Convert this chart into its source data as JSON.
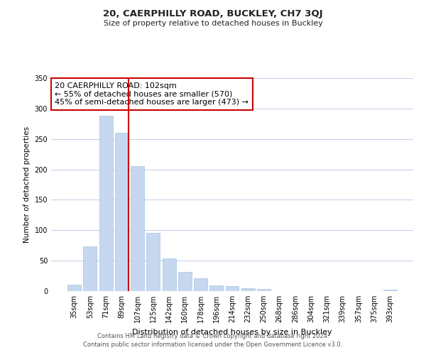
{
  "title": "20, CAERPHILLY ROAD, BUCKLEY, CH7 3QJ",
  "subtitle": "Size of property relative to detached houses in Buckley",
  "xlabel": "Distribution of detached houses by size in Buckley",
  "ylabel": "Number of detached properties",
  "bar_labels": [
    "35sqm",
    "53sqm",
    "71sqm",
    "89sqm",
    "107sqm",
    "125sqm",
    "142sqm",
    "160sqm",
    "178sqm",
    "196sqm",
    "214sqm",
    "232sqm",
    "250sqm",
    "268sqm",
    "286sqm",
    "304sqm",
    "321sqm",
    "339sqm",
    "357sqm",
    "375sqm",
    "393sqm"
  ],
  "bar_values": [
    10,
    74,
    288,
    260,
    205,
    96,
    54,
    31,
    21,
    9,
    8,
    5,
    4,
    0,
    0,
    0,
    0,
    0,
    0,
    0,
    2
  ],
  "bar_color": "#c5d8f0",
  "vline_color": "#cc0000",
  "annotation_line1": "20 CAERPHILLY ROAD: 102sqm",
  "annotation_line2": "← 55% of detached houses are smaller (570)",
  "annotation_line3": "45% of semi-detached houses are larger (473) →",
  "annotation_box_color": "#ffffff",
  "annotation_box_edge": "#cc0000",
  "ylim": [
    0,
    350
  ],
  "yticks": [
    0,
    50,
    100,
    150,
    200,
    250,
    300,
    350
  ],
  "footer_line1": "Contains HM Land Registry data © Crown copyright and database right 2024.",
  "footer_line2": "Contains public sector information licensed under the Open Government Licence v3.0.",
  "bg_color": "#ffffff",
  "grid_color": "#c8d4e8",
  "vline_bar_index": 3
}
